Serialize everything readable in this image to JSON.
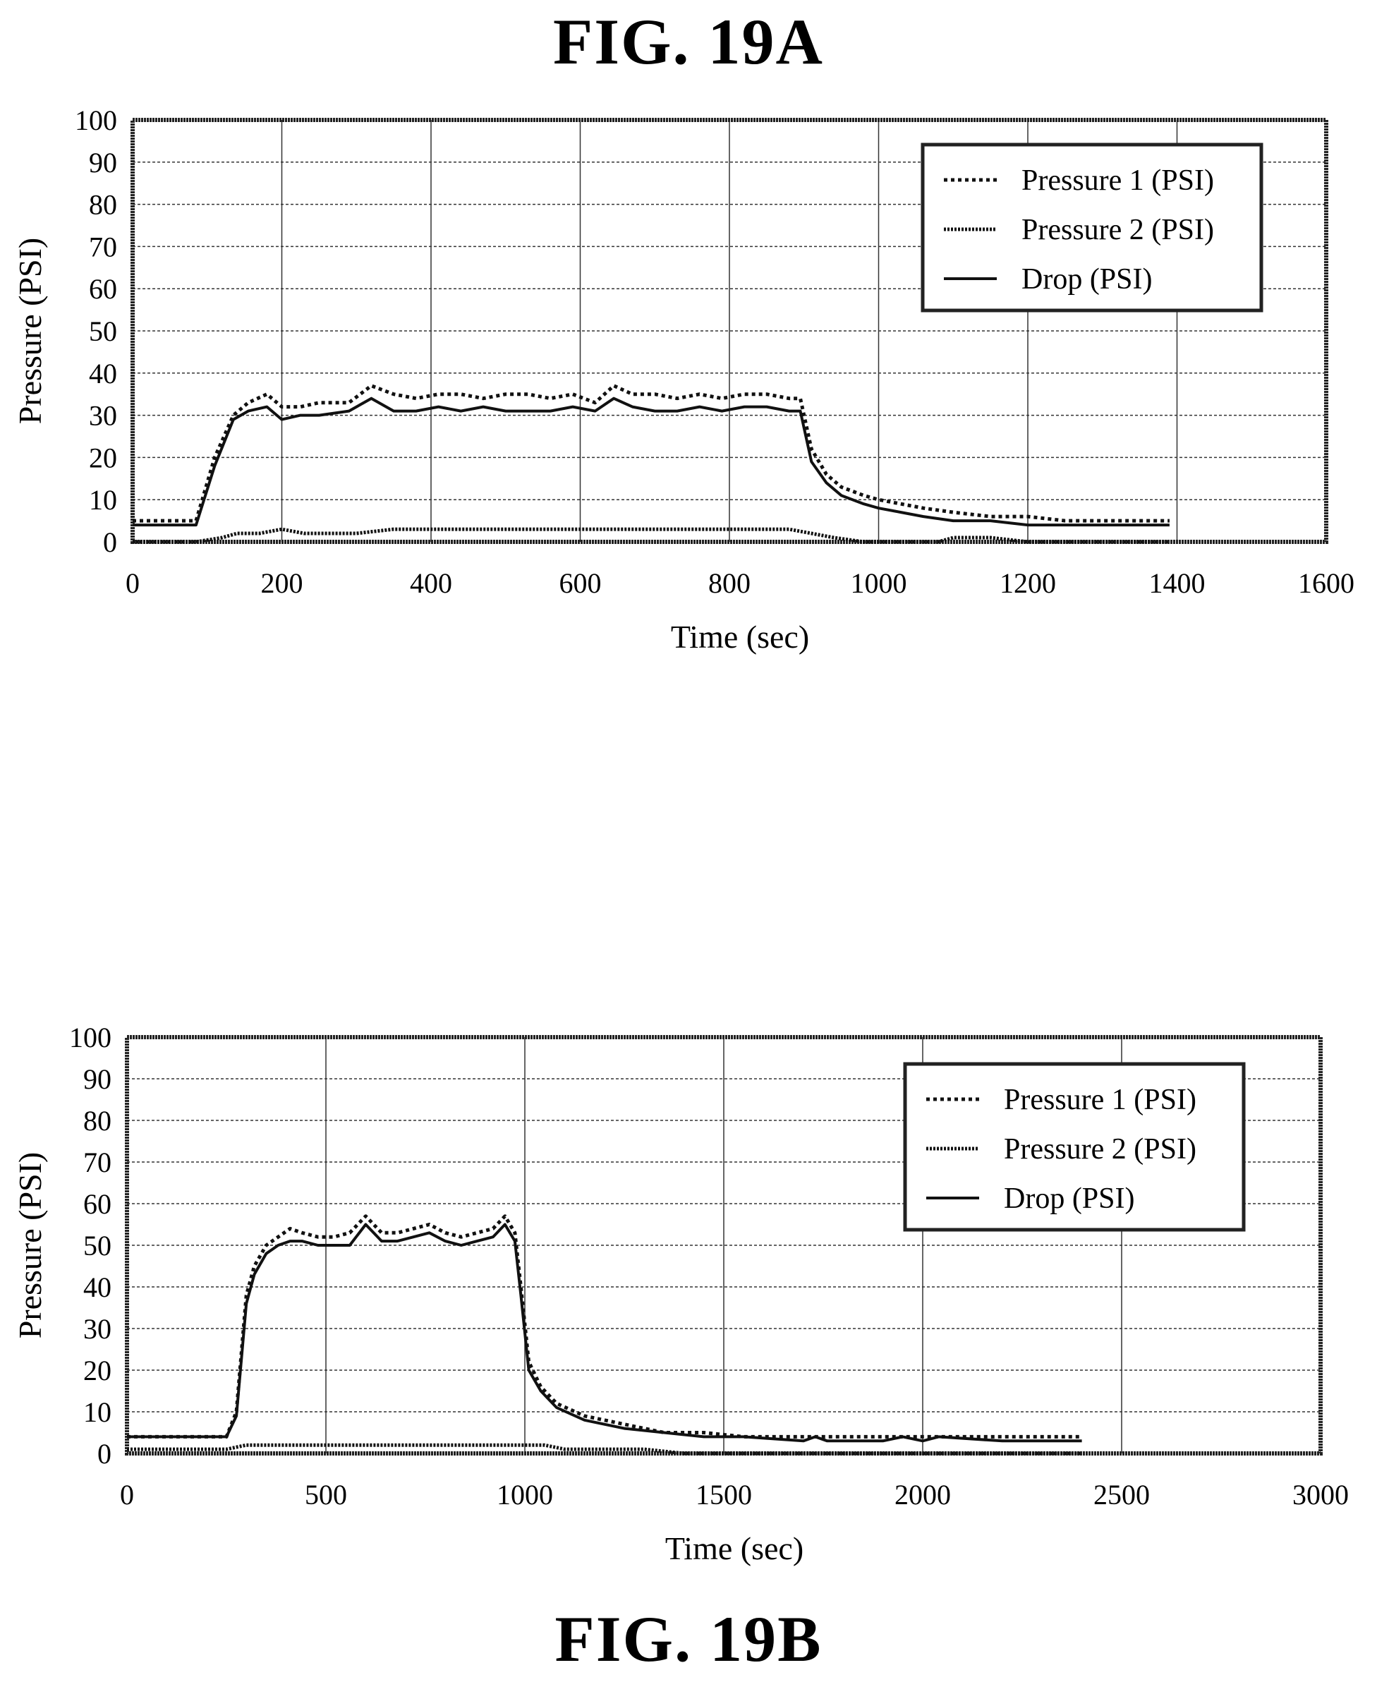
{
  "figure_a_label": "FIG. 19A",
  "figure_b_label": "FIG. 19B",
  "chart_data": [
    {
      "type": "line",
      "title": "",
      "xlabel": "Time (sec)",
      "ylabel": "Pressure (PSI)",
      "xlim": [
        0,
        1600
      ],
      "ylim": [
        0,
        100
      ],
      "xticks": [
        0,
        200,
        400,
        600,
        800,
        1000,
        1200,
        1400,
        1600
      ],
      "yticks": [
        0,
        10,
        20,
        30,
        40,
        50,
        60,
        70,
        80,
        90,
        100
      ],
      "grid": true,
      "legend_position": "top-right",
      "series": [
        {
          "name": "Pressure 1 (PSI)",
          "style": "dotted",
          "x": [
            0,
            40,
            85,
            110,
            135,
            155,
            180,
            200,
            225,
            250,
            290,
            320,
            350,
            380,
            410,
            440,
            470,
            500,
            530,
            560,
            590,
            620,
            645,
            670,
            700,
            730,
            760,
            790,
            820,
            850,
            880,
            895,
            910,
            930,
            950,
            980,
            1000,
            1030,
            1060,
            1100,
            1150,
            1200,
            1250,
            1300,
            1350,
            1390
          ],
          "y": [
            5,
            5,
            5,
            20,
            30,
            33,
            35,
            32,
            32,
            33,
            33,
            37,
            35,
            34,
            35,
            35,
            34,
            35,
            35,
            34,
            35,
            33,
            37,
            35,
            35,
            34,
            35,
            34,
            35,
            35,
            34,
            34,
            22,
            16,
            13,
            11,
            10,
            9,
            8,
            7,
            6,
            6,
            5,
            5,
            5,
            5
          ]
        },
        {
          "name": "Pressure 2 (PSI)",
          "style": "densely-dotted",
          "x": [
            0,
            85,
            120,
            140,
            170,
            200,
            230,
            260,
            300,
            350,
            400,
            450,
            500,
            550,
            600,
            650,
            700,
            750,
            800,
            850,
            880,
            910,
            940,
            980,
            1040,
            1080,
            1100,
            1150,
            1200,
            1250,
            1300,
            1350,
            1390
          ],
          "y": [
            0,
            0,
            1,
            2,
            2,
            3,
            2,
            2,
            2,
            3,
            3,
            3,
            3,
            3,
            3,
            3,
            3,
            3,
            3,
            3,
            3,
            2,
            1,
            0,
            0,
            0,
            1,
            1,
            0,
            0,
            0,
            0,
            0
          ]
        },
        {
          "name": "Drop (PSI)",
          "style": "solid",
          "x": [
            0,
            40,
            85,
            110,
            135,
            155,
            180,
            200,
            225,
            250,
            290,
            320,
            350,
            380,
            410,
            440,
            470,
            500,
            530,
            560,
            590,
            620,
            645,
            670,
            700,
            730,
            760,
            790,
            820,
            850,
            880,
            895,
            910,
            930,
            950,
            980,
            1000,
            1030,
            1060,
            1100,
            1150,
            1200,
            1250,
            1300,
            1350,
            1390
          ],
          "y": [
            4,
            4,
            4,
            18,
            29,
            31,
            32,
            29,
            30,
            30,
            31,
            34,
            31,
            31,
            32,
            31,
            32,
            31,
            31,
            31,
            32,
            31,
            34,
            32,
            31,
            31,
            32,
            31,
            32,
            32,
            31,
            31,
            19,
            14,
            11,
            9,
            8,
            7,
            6,
            5,
            5,
            4,
            4,
            4,
            4,
            4
          ]
        }
      ]
    },
    {
      "type": "line",
      "title": "",
      "xlabel": "Time (sec)",
      "ylabel": "Pressure (PSI)",
      "xlim": [
        0,
        3000
      ],
      "ylim": [
        0,
        100
      ],
      "xticks": [
        0,
        500,
        1000,
        1500,
        2000,
        2500,
        3000
      ],
      "yticks": [
        0,
        10,
        20,
        30,
        40,
        50,
        60,
        70,
        80,
        90,
        100
      ],
      "grid": true,
      "legend_position": "top-right",
      "series": [
        {
          "name": "Pressure 1 (PSI)",
          "style": "dotted",
          "x": [
            0,
            250,
            275,
            300,
            320,
            350,
            380,
            410,
            440,
            480,
            520,
            560,
            600,
            640,
            680,
            720,
            760,
            800,
            840,
            880,
            920,
            950,
            975,
            990,
            1010,
            1040,
            1080,
            1150,
            1250,
            1350,
            1450,
            1550,
            1700,
            1800,
            2000,
            2200,
            2400
          ],
          "y": [
            4,
            4,
            10,
            38,
            45,
            50,
            52,
            54,
            53,
            52,
            52,
            53,
            57,
            53,
            53,
            54,
            55,
            53,
            52,
            53,
            54,
            57,
            53,
            40,
            22,
            16,
            12,
            9,
            7,
            5,
            5,
            4,
            4,
            4,
            4,
            4,
            4
          ]
        },
        {
          "name": "Pressure 2 (PSI)",
          "style": "densely-dotted",
          "x": [
            0,
            250,
            300,
            350,
            400,
            500,
            600,
            700,
            800,
            900,
            1000,
            1050,
            1100,
            1200,
            1300,
            1400,
            1600,
            2000,
            2400
          ],
          "y": [
            1,
            1,
            2,
            2,
            2,
            2,
            2,
            2,
            2,
            2,
            2,
            2,
            1,
            1,
            1,
            0,
            0,
            0,
            0
          ]
        },
        {
          "name": "Drop (PSI)",
          "style": "solid",
          "x": [
            0,
            250,
            275,
            300,
            320,
            350,
            380,
            410,
            440,
            480,
            520,
            560,
            600,
            640,
            680,
            720,
            760,
            800,
            840,
            880,
            920,
            950,
            975,
            990,
            1010,
            1040,
            1080,
            1150,
            1250,
            1350,
            1450,
            1550,
            1700,
            1730,
            1760,
            1900,
            1950,
            2000,
            2040,
            2200,
            2400
          ],
          "y": [
            4,
            4,
            9,
            36,
            43,
            48,
            50,
            51,
            51,
            50,
            50,
            50,
            55,
            51,
            51,
            52,
            53,
            51,
            50,
            51,
            52,
            55,
            51,
            38,
            20,
            15,
            11,
            8,
            6,
            5,
            4,
            4,
            3,
            4,
            3,
            3,
            4,
            3,
            4,
            3,
            3
          ]
        }
      ]
    }
  ]
}
